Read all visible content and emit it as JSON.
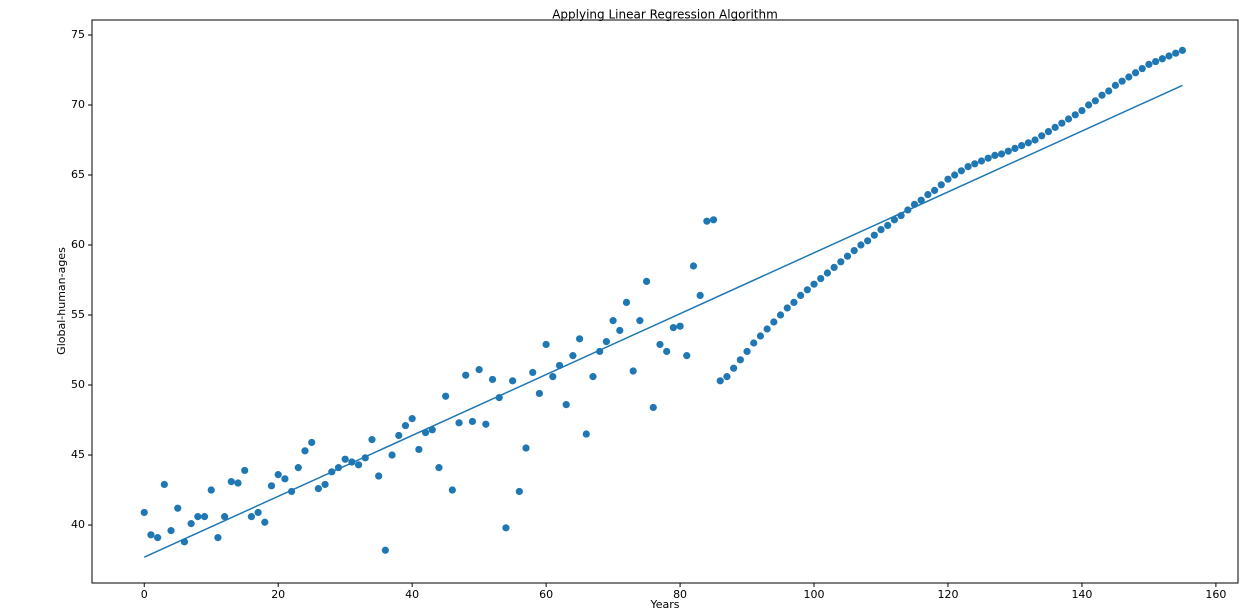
{
  "chart_data": {
    "type": "scatter",
    "title": "Applying Linear Regression Algorithm",
    "x_label": "Years",
    "y_label": "Global-human-ages",
    "xlim": [
      -7.8,
      163.3
    ],
    "ylim": [
      35.86,
      76.07
    ],
    "xticks": [
      0,
      20,
      40,
      60,
      80,
      100,
      120,
      140,
      160
    ],
    "yticks": [
      40,
      45,
      50,
      55,
      60,
      65,
      70,
      75
    ],
    "series": [
      {
        "type": "scatter",
        "color": "#1f77b4",
        "x": [
          0,
          1,
          2,
          3,
          4,
          5,
          6,
          7,
          8,
          9,
          10,
          11,
          12,
          13,
          14,
          15,
          16,
          17,
          18,
          19,
          20,
          21,
          22,
          23,
          24,
          25,
          26,
          27,
          28,
          29,
          30,
          31,
          32,
          33,
          34,
          35,
          36,
          37,
          38,
          39,
          40,
          41,
          42,
          43,
          44,
          45,
          46,
          47,
          48,
          49,
          50,
          51,
          52,
          53,
          54,
          55,
          56,
          57,
          58,
          59,
          60,
          61,
          62,
          63,
          64,
          65,
          66,
          67,
          68,
          69,
          70,
          71,
          72,
          73,
          74,
          75,
          76,
          77,
          78,
          79,
          80,
          81,
          82,
          83,
          84,
          85,
          86,
          87,
          88,
          89,
          90,
          91,
          92,
          93,
          94,
          95,
          96,
          97,
          98,
          99,
          100,
          101,
          102,
          103,
          104,
          105,
          106,
          107,
          108,
          109,
          110,
          111,
          112,
          113,
          114,
          115,
          116,
          117,
          118,
          119,
          120,
          121,
          122,
          123,
          124,
          125,
          126,
          127,
          128,
          129,
          130,
          131,
          132,
          133,
          134,
          135,
          136,
          137,
          138,
          139,
          140,
          141,
          142,
          143,
          144,
          145,
          146,
          147,
          148,
          149,
          150,
          151,
          152,
          153,
          154,
          155
        ],
        "values": [
          40.9,
          39.3,
          39.1,
          42.9,
          39.6,
          41.2,
          38.8,
          40.1,
          40.6,
          40.6,
          42.5,
          39.1,
          40.6,
          43.1,
          43.0,
          43.9,
          40.6,
          40.9,
          40.2,
          42.8,
          43.6,
          43.3,
          42.4,
          44.1,
          45.3,
          45.9,
          42.6,
          42.9,
          43.8,
          44.1,
          44.7,
          44.5,
          44.3,
          44.8,
          46.1,
          43.5,
          38.2,
          45.0,
          46.4,
          47.1,
          47.6,
          45.4,
          46.6,
          46.8,
          44.1,
          49.2,
          42.5,
          47.3,
          50.7,
          47.4,
          51.1,
          47.2,
          50.4,
          49.1,
          39.8,
          50.3,
          42.4,
          45.5,
          50.9,
          49.4,
          52.9,
          50.6,
          51.4,
          48.6,
          52.1,
          53.3,
          46.5,
          50.6,
          52.4,
          53.1,
          54.6,
          53.9,
          55.9,
          51.0,
          54.6,
          57.4,
          48.4,
          52.9,
          52.4,
          54.1,
          54.2,
          52.1,
          58.5,
          56.4,
          61.7,
          61.8,
          50.3,
          50.6,
          51.2,
          51.8,
          52.4,
          53.0,
          53.5,
          54.0,
          54.5,
          55.0,
          55.5,
          55.9,
          56.4,
          56.8,
          57.2,
          57.6,
          58.0,
          58.4,
          58.8,
          59.2,
          59.6,
          60.0,
          60.3,
          60.7,
          61.1,
          61.4,
          61.8,
          62.1,
          62.5,
          62.9,
          63.2,
          63.6,
          63.9,
          64.3,
          64.7,
          65.0,
          65.3,
          65.6,
          65.8,
          66.0,
          66.2,
          66.4,
          66.5,
          66.7,
          66.9,
          67.1,
          67.3,
          67.5,
          67.8,
          68.1,
          68.4,
          68.7,
          69.0,
          69.3,
          69.6,
          70.0,
          70.3,
          70.7,
          71.0,
          71.4,
          71.7,
          72.0,
          72.3,
          72.6,
          72.9,
          73.1,
          73.3,
          73.5,
          73.7,
          73.9
        ]
      },
      {
        "type": "line",
        "color": "#1f77b4",
        "x": [
          0,
          155
        ],
        "values": [
          37.7,
          71.4
        ]
      }
    ]
  }
}
